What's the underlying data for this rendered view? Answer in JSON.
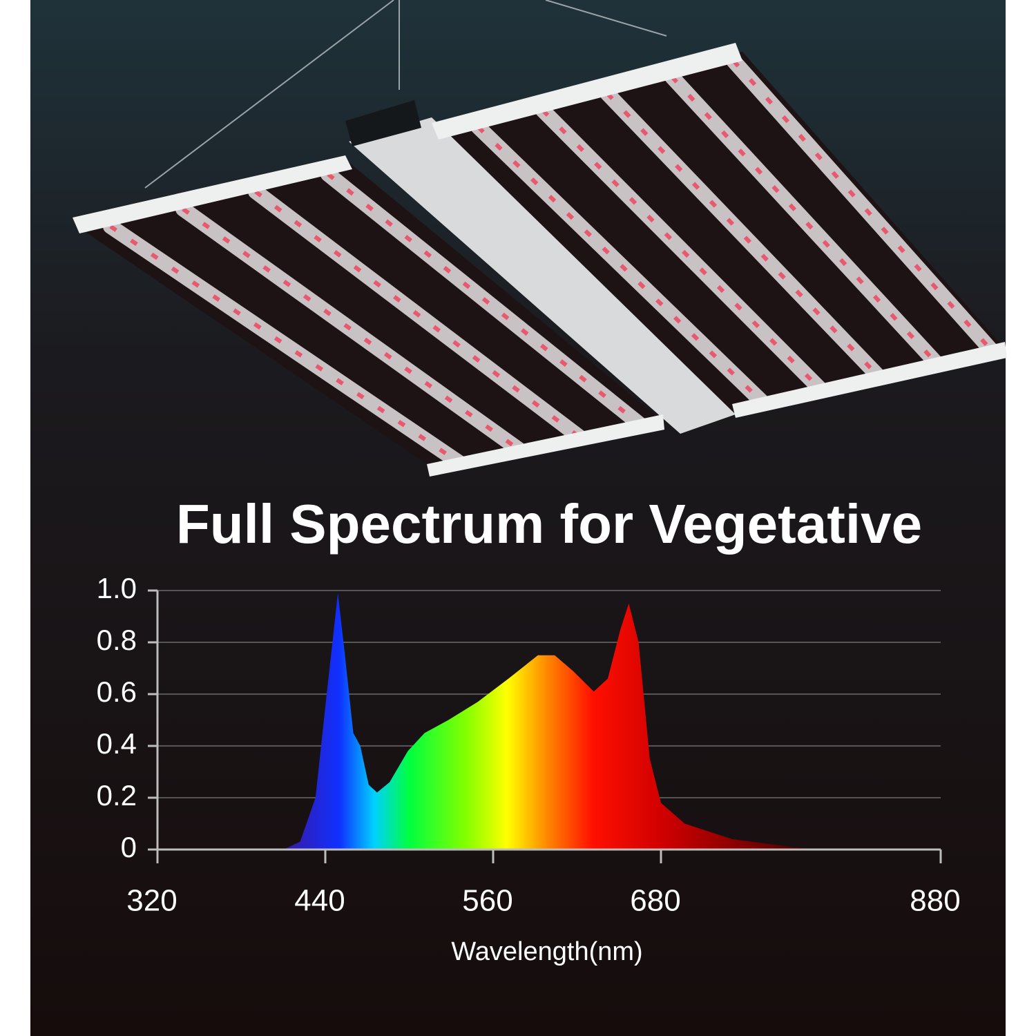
{
  "chart_data": {
    "type": "area",
    "title": "Full Spectrum for Vegetative",
    "x_label": "Wavelength(nm)",
    "x": [
      410,
      422,
      433,
      441,
      449,
      454,
      460,
      465,
      471,
      477,
      486,
      499,
      511,
      528,
      549,
      571,
      592,
      604,
      617,
      632,
      642,
      651,
      657,
      664,
      672,
      680,
      697,
      731,
      774,
      791
    ],
    "values": [
      0,
      0.03,
      0.2,
      0.6,
      0.99,
      0.75,
      0.45,
      0.4,
      0.25,
      0.22,
      0.26,
      0.38,
      0.45,
      0.5,
      0.57,
      0.66,
      0.75,
      0.75,
      0.69,
      0.61,
      0.66,
      0.85,
      0.95,
      0.8,
      0.35,
      0.18,
      0.1,
      0.04,
      0.01,
      0
    ],
    "xlim": [
      320,
      880
    ],
    "xticks": [
      320,
      440,
      560,
      680,
      880
    ],
    "ylim": [
      0,
      1
    ],
    "yticks": [
      0,
      0.2,
      0.4,
      0.6,
      0.8,
      {
        "value": 1,
        "label": "1.0"
      }
    ],
    "grid": true
  }
}
